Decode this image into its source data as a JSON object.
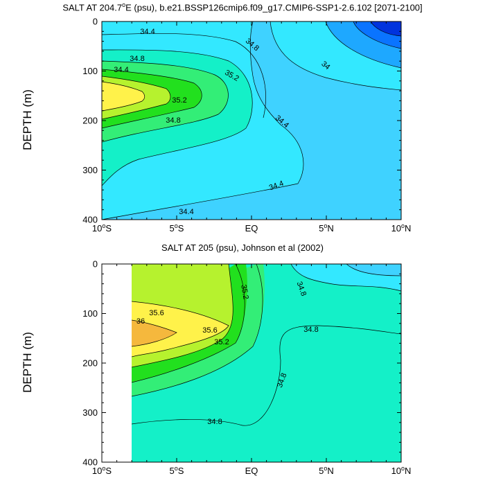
{
  "chart_data": [
    {
      "type": "heatmap",
      "subtype": "filled-contour",
      "title": "SALT AT 204.7°E (psu), b.e21.BSSP126cmip6.f09_g17.CMIP6-SSP1-2.6.102 [2071-2100]",
      "title_main": "SALT AT 204.7",
      "title_sup": "o",
      "title_rest": "E (psu), b.e21.BSSP126cmip6.f09_g17.CMIP6-SSP1-2.6.102 [2071-2100]",
      "xlabel": "",
      "ylabel": "DEPTH (m)",
      "xlim": [
        -10,
        10
      ],
      "ylim": [
        400,
        0
      ],
      "x_ticks": [
        {
          "main": "10",
          "sup": "o",
          "suffix": "S"
        },
        {
          "main": "5",
          "sup": "o",
          "suffix": "S"
        },
        {
          "main": "EQ",
          "sup": "",
          "suffix": ""
        },
        {
          "main": "5",
          "sup": "o",
          "suffix": "N"
        },
        {
          "main": "10",
          "sup": "o",
          "suffix": "N"
        }
      ],
      "y_ticks": [
        "0",
        "100",
        "200",
        "300",
        "400"
      ],
      "contour_levels": [
        34.0,
        34.4,
        34.8,
        35.2,
        35.6
      ],
      "contour_labels": [
        "34.4",
        "34.4",
        "34.8",
        "35.2",
        "34.8",
        "35.2",
        "34.8",
        "34",
        "34.4",
        "34.4",
        "34.4"
      ],
      "colors": [
        "#0033dd",
        "#0a74ff",
        "#1ea8ff",
        "#3fd2ff",
        "#33e8ff",
        "#14f0c8",
        "#33ee77",
        "#22e01e",
        "#b6f22e",
        "#fff24a",
        "#f5b83d"
      ]
    },
    {
      "type": "heatmap",
      "subtype": "filled-contour",
      "title": "SALT AT 205 (psu), Johnson et al (2002)",
      "xlabel": "",
      "ylabel": "DEPTH (m)",
      "xlim": [
        -10,
        10
      ],
      "ylim": [
        400,
        0
      ],
      "x_ticks": [
        {
          "main": "10",
          "sup": "o",
          "suffix": "S"
        },
        {
          "main": "5",
          "sup": "o",
          "suffix": "S"
        },
        {
          "main": "EQ",
          "sup": "",
          "suffix": ""
        },
        {
          "main": "5",
          "sup": "o",
          "suffix": "N"
        },
        {
          "main": "10",
          "sup": "o",
          "suffix": "N"
        }
      ],
      "y_ticks": [
        "0",
        "100",
        "200",
        "300",
        "400"
      ],
      "data_start_lat": -8,
      "contour_levels": [
        34.8,
        35.2,
        35.6,
        36.0
      ],
      "contour_labels": [
        "35.2",
        "34.8",
        "35.6",
        "36",
        "35.6",
        "35.2",
        "34.8",
        "34.8",
        "34.8"
      ],
      "colors": [
        "#0033dd",
        "#0a74ff",
        "#1ea8ff",
        "#3fd2ff",
        "#33e8ff",
        "#14f0c8",
        "#33ee77",
        "#22e01e",
        "#b6f22e",
        "#fff24a",
        "#f5b83d"
      ]
    }
  ]
}
